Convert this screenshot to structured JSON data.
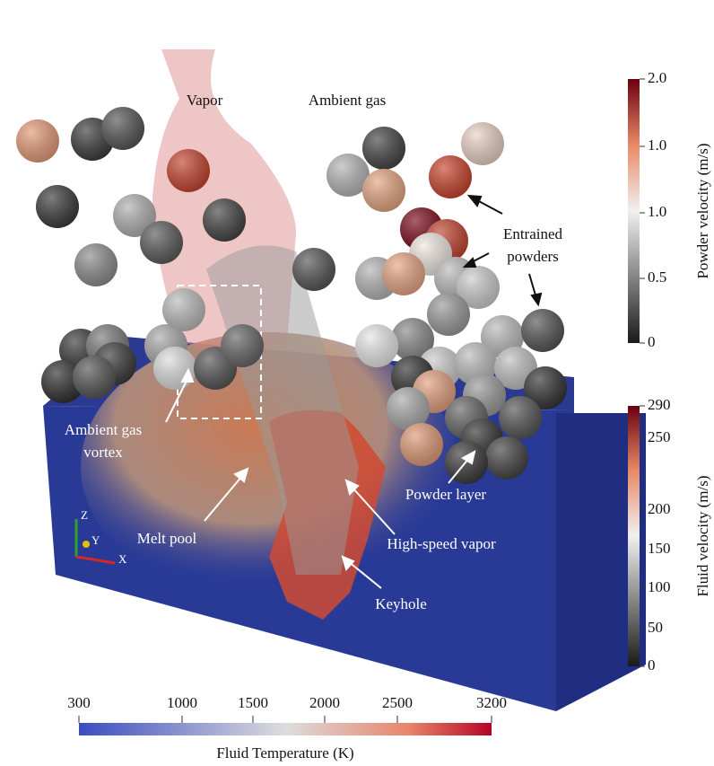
{
  "annotations": {
    "vapor": "Vapor",
    "ambient_gas": "Ambient gas",
    "entrained_powders": [
      "Entrained",
      "powders"
    ],
    "ambient_gas_vortex": [
      "Ambient gas",
      "vortex"
    ],
    "powder_layer": "Powder layer",
    "melt_pool": "Melt pool",
    "high_speed_vapor": "High-speed vapor",
    "keyhole": "Keyhole"
  },
  "axes_triad": {
    "z": "Z",
    "y": "Y",
    "x": "X"
  },
  "colorbars": {
    "powder_velocity": {
      "title": "Powder velocity (m/s)",
      "ticks": [
        "2.0",
        "1.0",
        "1.0",
        "0.5",
        "0"
      ]
    },
    "fluid_velocity": {
      "title": "Fluid velocity (m/s)",
      "ticks": [
        "290",
        "250",
        "200",
        "150",
        "100",
        "50",
        "0"
      ]
    },
    "fluid_temperature": {
      "title": "Fluid Temperature (K)",
      "ticks": [
        "300",
        "1000",
        "1500",
        "2000",
        "2500",
        "3200"
      ]
    }
  }
}
